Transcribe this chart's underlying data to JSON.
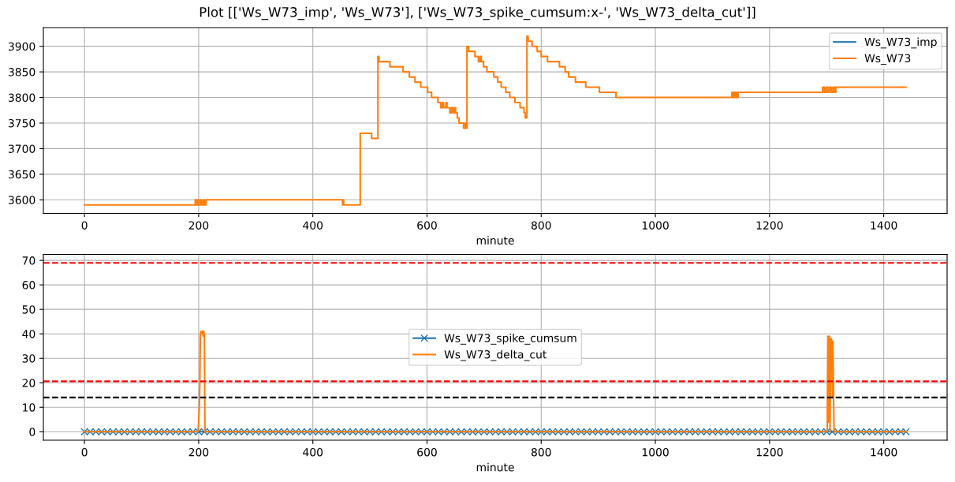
{
  "chart_data": [
    {
      "type": "step",
      "title": "Plot [['Ws_W73_imp', 'Ws_W73'], ['Ws_W73_spike_cumsum:x-', 'Ws_W73_delta_cut']]",
      "xlabel": "minute",
      "series": [
        {
          "name": "Ws_W73_imp",
          "color": "#1f77b4",
          "values": [
            null
          ]
        },
        {
          "name": "Ws_W73",
          "color": "#ff7f0e",
          "x": [
            0,
            194,
            196,
            198,
            200,
            203,
            205,
            208,
            210,
            213,
            452,
            453,
            454,
            483,
            503,
            514,
            516,
            535,
            558,
            569,
            579,
            589,
            601,
            608,
            619,
            624,
            627,
            629,
            633,
            635,
            640,
            643,
            645,
            648,
            650,
            653,
            656,
            664,
            667,
            669,
            670,
            673,
            684,
            690,
            693,
            695,
            699,
            705,
            717,
            724,
            730,
            738,
            745,
            754,
            763,
            770,
            772,
            775,
            777,
            784,
            793,
            800,
            811,
            832,
            842,
            848,
            860,
            878,
            902,
            931,
            1134,
            1136,
            1138,
            1140,
            1142,
            1144,
            1145,
            1293,
            1296,
            1299,
            1302,
            1305,
            1308,
            1311,
            1314,
            1316,
            1439
          ],
          "values": [
            3590,
            3600,
            3590,
            3600,
            3590,
            3600,
            3590,
            3600,
            3590,
            3600,
            3590,
            3600,
            3590,
            3730,
            3720,
            3880,
            3870,
            3860,
            3850,
            3840,
            3830,
            3820,
            3810,
            3800,
            3790,
            3780,
            3790,
            3780,
            3790,
            3780,
            3770,
            3780,
            3770,
            3780,
            3770,
            3760,
            3750,
            3740,
            3750,
            3740,
            3900,
            3890,
            3880,
            3870,
            3880,
            3870,
            3860,
            3850,
            3840,
            3830,
            3820,
            3810,
            3800,
            3790,
            3780,
            3770,
            3760,
            3920,
            3910,
            3900,
            3890,
            3880,
            3870,
            3860,
            3850,
            3840,
            3830,
            3820,
            3810,
            3800,
            3810,
            3800,
            3810,
            3800,
            3810,
            3800,
            3810,
            3820,
            3810,
            3820,
            3810,
            3820,
            3810,
            3820,
            3810,
            3820,
            3820
          ]
        }
      ],
      "xlim": [
        -72,
        1511
      ],
      "xticks": [
        0,
        200,
        400,
        600,
        800,
        1000,
        1200,
        1400
      ],
      "ylim": [
        3573.5,
        3936.5
      ],
      "yticks": [
        3600,
        3650,
        3700,
        3750,
        3800,
        3850,
        3900
      ],
      "grid": true,
      "legend": "top right"
    },
    {
      "type": "line",
      "xlabel": "minute",
      "series": [
        {
          "name": "Ws_W73_spike_cumsum",
          "color": "#1f77b4",
          "marker": "cross",
          "x": [
            0,
            10,
            20,
            30,
            40,
            50,
            60,
            70,
            80,
            90,
            100,
            110,
            120,
            130,
            140,
            150,
            160,
            170,
            180,
            190,
            200,
            210,
            220,
            230,
            240,
            250,
            260,
            270,
            280,
            290,
            300,
            310,
            320,
            330,
            340,
            350,
            360,
            370,
            380,
            390,
            400,
            410,
            420,
            430,
            440,
            450,
            460,
            470,
            480,
            490,
            500,
            510,
            520,
            530,
            540,
            550,
            560,
            570,
            580,
            590,
            600,
            610,
            620,
            630,
            640,
            650,
            660,
            670,
            680,
            690,
            700,
            710,
            720,
            730,
            740,
            750,
            760,
            770,
            780,
            790,
            800,
            810,
            820,
            830,
            840,
            850,
            860,
            870,
            880,
            890,
            900,
            910,
            920,
            930,
            940,
            950,
            960,
            970,
            980,
            990,
            1000,
            1010,
            1020,
            1030,
            1040,
            1050,
            1060,
            1070,
            1080,
            1090,
            1100,
            1110,
            1120,
            1130,
            1140,
            1150,
            1160,
            1170,
            1180,
            1190,
            1200,
            1210,
            1220,
            1230,
            1240,
            1250,
            1260,
            1270,
            1280,
            1290,
            1300,
            1310,
            1320,
            1330,
            1340,
            1350,
            1360,
            1370,
            1380,
            1390,
            1400,
            1410,
            1420,
            1430,
            1439
          ],
          "values": [
            0,
            0,
            0,
            0,
            0,
            0,
            0,
            0,
            0,
            0,
            0,
            0,
            0,
            0,
            0,
            0,
            0,
            0,
            0,
            0,
            0,
            0,
            0,
            0,
            0,
            0,
            0,
            0,
            0,
            0,
            0,
            0,
            0,
            0,
            0,
            0,
            0,
            0,
            0,
            0,
            0,
            0,
            0,
            0,
            0,
            0,
            0,
            0,
            0,
            0,
            0,
            0,
            0,
            0,
            0,
            0,
            0,
            0,
            0,
            0,
            0,
            0,
            0,
            0,
            0,
            0,
            0,
            0,
            0,
            0,
            0,
            0,
            0,
            0,
            0,
            0,
            0,
            0,
            0,
            0,
            0,
            0,
            0,
            0,
            0,
            0,
            0,
            0,
            0,
            0,
            0,
            0,
            0,
            0,
            0,
            0,
            0,
            0,
            0,
            0,
            0,
            0,
            0,
            0,
            0,
            0,
            0,
            0,
            0,
            0,
            0,
            0,
            0,
            0,
            0,
            0,
            0,
            0,
            0,
            0,
            0,
            0,
            0,
            0,
            0,
            0,
            0,
            0,
            0,
            0,
            0,
            0,
            0,
            0,
            0,
            0,
            0,
            0,
            0,
            0,
            0,
            0,
            0,
            0,
            0
          ]
        },
        {
          "name": "Ws_W73_delta_cut",
          "color": "#ff7f0e",
          "x": [
            0,
            199,
            200,
            201,
            202,
            203,
            204,
            205,
            206,
            207,
            208,
            209,
            210,
            211,
            1301,
            1302,
            1303,
            1304,
            1305,
            1306,
            1307,
            1308,
            1309,
            1310,
            1311,
            1312,
            1313,
            1439
          ],
          "values": [
            0,
            0,
            4,
            9,
            19,
            39,
            41,
            40,
            41,
            41,
            39,
            41,
            39,
            0,
            0,
            39,
            4,
            39,
            39,
            0,
            38,
            38,
            37,
            14,
            37,
            15,
            0,
            0
          ]
        }
      ],
      "ref_lines": [
        {
          "axis": "y",
          "value": 69,
          "color": "#ff0000",
          "line_style": "dashed"
        },
        {
          "axis": "y",
          "value": 20.6,
          "color": "#ff0000",
          "line_style": "dashed"
        },
        {
          "axis": "y",
          "value": 14,
          "color": "#000000",
          "line_style": "dashed"
        }
      ],
      "xlim": [
        -72,
        1511
      ],
      "xticks": [
        0,
        200,
        400,
        600,
        800,
        1000,
        1200,
        1400
      ],
      "ylim": [
        -3.45,
        72.45
      ],
      "yticks": [
        0,
        10,
        20,
        30,
        40,
        50,
        60,
        70
      ],
      "grid": true,
      "legend": "center"
    }
  ]
}
